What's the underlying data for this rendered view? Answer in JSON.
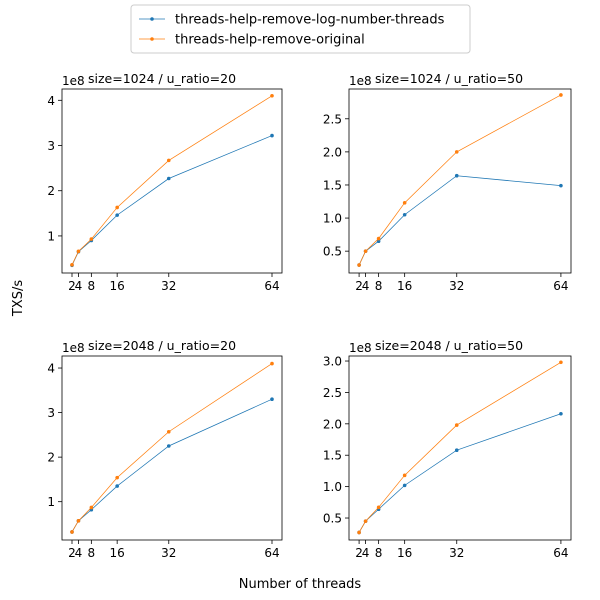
{
  "legend": {
    "entries": [
      {
        "label": "threads-help-remove-log-number-threads",
        "color": "#1f77b4"
      },
      {
        "label": "threads-help-remove-original",
        "color": "#ff7f0e"
      }
    ]
  },
  "figure": {
    "ylabel": "TXS/s",
    "xlabel": "Number of threads"
  },
  "chart_data": [
    {
      "type": "line",
      "title": "size=1024 / u_ratio=20",
      "x": [
        2,
        4,
        8,
        16,
        32,
        64
      ],
      "xticks": [
        2,
        4,
        8,
        16,
        32,
        64
      ],
      "xtick_labels": [
        "2",
        "4",
        "8",
        "16",
        "32",
        "64"
      ],
      "xlim": [
        -1.1,
        67.1
      ],
      "ylim": [
        0.18,
        4.25
      ],
      "yticks": [
        1,
        2,
        3,
        4
      ],
      "ytick_labels": [
        "1",
        "2",
        "3",
        "4"
      ],
      "y_offset_label": "1e8",
      "series": [
        {
          "name": "threads-help-remove-log-number-threads",
          "values": [
            0.35,
            0.65,
            0.9,
            1.46,
            2.27,
            3.22
          ]
        },
        {
          "name": "threads-help-remove-original",
          "values": [
            0.36,
            0.66,
            0.93,
            1.63,
            2.67,
            4.1
          ]
        }
      ]
    },
    {
      "type": "line",
      "title": "size=1024 / u_ratio=50",
      "x": [
        2,
        4,
        8,
        16,
        32,
        64
      ],
      "xticks": [
        2,
        4,
        8,
        16,
        32,
        64
      ],
      "xtick_labels": [
        "2",
        "4",
        "8",
        "16",
        "32",
        "64"
      ],
      "xlim": [
        -1.1,
        67.1
      ],
      "ylim": [
        0.17,
        2.95
      ],
      "yticks": [
        0.5,
        1.0,
        1.5,
        2.0,
        2.5
      ],
      "ytick_labels": [
        "0.5",
        "1.0",
        "1.5",
        "2.0",
        "2.5"
      ],
      "y_offset_label": "1e8",
      "series": [
        {
          "name": "threads-help-remove-log-number-threads",
          "values": [
            0.29,
            0.5,
            0.65,
            1.05,
            1.64,
            1.49
          ]
        },
        {
          "name": "threads-help-remove-original",
          "values": [
            0.29,
            0.5,
            0.69,
            1.23,
            2.0,
            2.86
          ]
        }
      ]
    },
    {
      "type": "line",
      "title": "size=2048 / u_ratio=20",
      "x": [
        2,
        4,
        8,
        16,
        32,
        64
      ],
      "xticks": [
        2,
        4,
        8,
        16,
        32,
        64
      ],
      "xtick_labels": [
        "2",
        "4",
        "8",
        "16",
        "32",
        "64"
      ],
      "xlim": [
        -1.1,
        67.1
      ],
      "ylim": [
        0.14,
        4.27
      ],
      "yticks": [
        1,
        2,
        3,
        4
      ],
      "ytick_labels": [
        "1",
        "2",
        "3",
        "4"
      ],
      "y_offset_label": "1e8",
      "series": [
        {
          "name": "threads-help-remove-log-number-threads",
          "values": [
            0.32,
            0.57,
            0.82,
            1.35,
            2.25,
            3.3
          ]
        },
        {
          "name": "threads-help-remove-original",
          "values": [
            0.32,
            0.57,
            0.87,
            1.54,
            2.57,
            4.1
          ]
        }
      ]
    },
    {
      "type": "line",
      "title": "size=2048 / u_ratio=50",
      "x": [
        2,
        4,
        8,
        16,
        32,
        64
      ],
      "xticks": [
        2,
        4,
        8,
        16,
        32,
        64
      ],
      "xtick_labels": [
        "2",
        "4",
        "8",
        "16",
        "32",
        "64"
      ],
      "xlim": [
        -1.1,
        67.1
      ],
      "ylim": [
        0.15,
        3.08
      ],
      "yticks": [
        0.5,
        1.0,
        1.5,
        2.0,
        2.5,
        3.0
      ],
      "ytick_labels": [
        "0.5",
        "1.0",
        "1.5",
        "2.0",
        "2.5",
        "3.0"
      ],
      "y_offset_label": "1e8",
      "series": [
        {
          "name": "threads-help-remove-log-number-threads",
          "values": [
            0.27,
            0.45,
            0.64,
            1.02,
            1.58,
            2.16
          ]
        },
        {
          "name": "threads-help-remove-original",
          "values": [
            0.27,
            0.45,
            0.67,
            1.18,
            1.98,
            2.98
          ]
        }
      ]
    }
  ]
}
